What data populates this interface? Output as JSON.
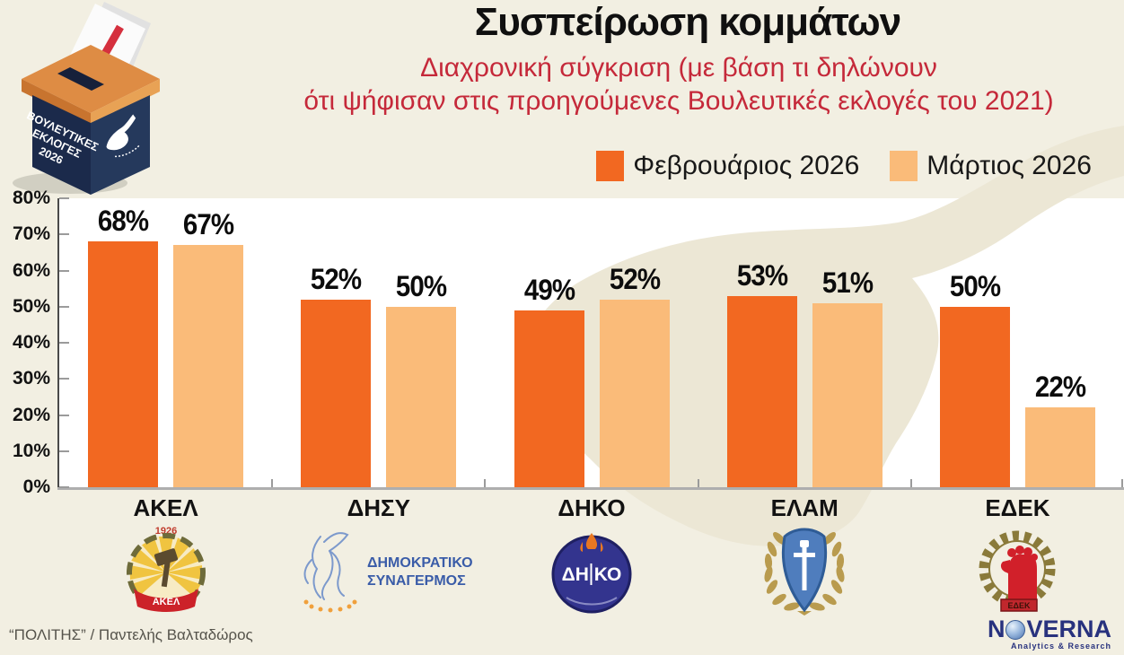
{
  "header": {
    "title": "Συσπείρωση κομμάτων",
    "subtitle_line1": "Διαχρονική σύγκριση (με βάση τι δηλώνουν",
    "subtitle_line2": "ότι ψήφισαν στις προηγούμενες Βουλευτικές εκλογές του 2021)"
  },
  "ballot_box": {
    "line1": "ΒΟΥΛΕΥΤΙΚΕΣ",
    "line2": "ΕΚΛΟΓΕΣ",
    "line3": "2026"
  },
  "legend": {
    "items": [
      {
        "label": "Φεβρουάριος 2026",
        "color": "#F26821"
      },
      {
        "label": "Μάρτιος 2026",
        "color": "#FABB79"
      }
    ]
  },
  "chart_data": {
    "type": "bar",
    "title": "Συσπείρωση κομμάτων",
    "categories": [
      "ΑΚΕΛ",
      "ΔΗΣΥ",
      "ΔΗΚΟ",
      "ΕΛΑΜ",
      "ΕΔΕΚ"
    ],
    "series": [
      {
        "name": "Φεβρουάριος 2026",
        "color": "#F26821",
        "values": [
          68,
          52,
          49,
          53,
          50
        ]
      },
      {
        "name": "Μάρτιος 2026",
        "color": "#FABB79",
        "values": [
          67,
          50,
          52,
          51,
          22
        ]
      }
    ],
    "ylim": [
      0,
      80
    ],
    "yticks": [
      "80%",
      "70%",
      "60%",
      "50%",
      "40%",
      "30%",
      "20%",
      "10%",
      "0%"
    ],
    "value_suffix": "%",
    "grid": false,
    "legend_position": "top-right"
  },
  "logos": {
    "akel_year": "1926",
    "akel_banner": "ΑΚΕΛ",
    "dhsy_line1": "ΔΗΜΟΚΡΑΤΙΚΟΣ",
    "dhsy_line2": "ΣΥΝΑΓΕΡΜΟΣ",
    "dhko_text": "ΔΗ ΚΟ",
    "edek_banner": "ΕΔΕΚ"
  },
  "footer": {
    "attribution": "“ΠΟΛΙΤΗΣ” / Παντελής Βαλταδώρος",
    "brand_left": "N",
    "brand_right": "VERNA",
    "brand_subtext": "Analytics & Research"
  },
  "colors": {
    "page_bg": "#F2EFE2",
    "plot_bg": "#FFFFFF",
    "map_fill": "#ECE7D5",
    "subtitle_red": "#C5293A"
  }
}
